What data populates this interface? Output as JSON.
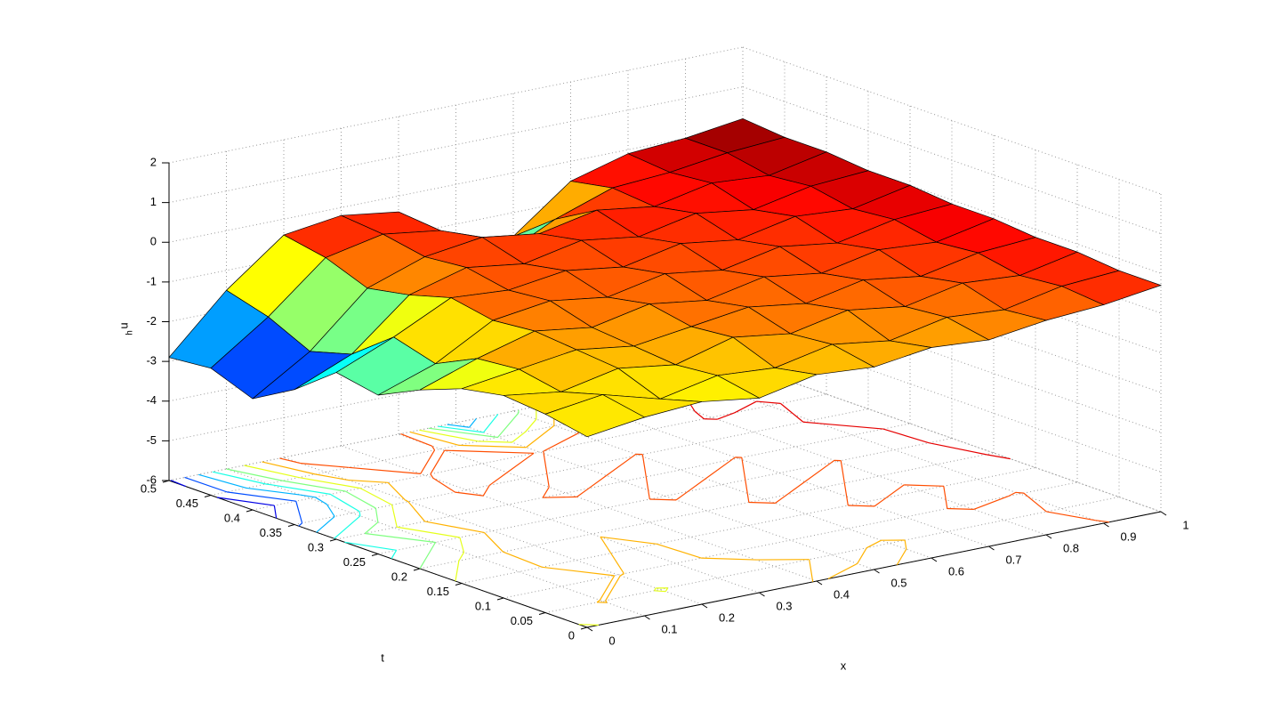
{
  "chart_data": {
    "type": "surface",
    "xlabel": "x",
    "ylabel": "t",
    "zlabel": "u",
    "zlabel_subscript": "h",
    "x": [
      0,
      0.1,
      0.2,
      0.3,
      0.4,
      0.5,
      0.6,
      0.7,
      0.8,
      0.9,
      1
    ],
    "t": [
      0,
      0.05,
      0.1,
      0.15,
      0.2,
      0.25,
      0.3,
      0.35,
      0.4,
      0.45,
      0.5
    ],
    "z": [
      [
        -1.2,
        -1.0,
        -0.9,
        -1.1,
        -0.8,
        -0.9,
        -0.7,
        -0.8,
        -0.6,
        -0.5,
        -0.3
      ],
      [
        -1.0,
        -0.8,
        -1.2,
        -0.9,
        -1.0,
        -0.7,
        -0.9,
        -0.6,
        -0.7,
        -0.4,
        -0.3
      ],
      [
        -0.9,
        -1.1,
        -0.8,
        -1.0,
        -0.6,
        -0.8,
        -0.5,
        -0.7,
        -0.4,
        -0.5,
        -0.2
      ],
      [
        -1.1,
        -0.9,
        -0.7,
        -0.9,
        -0.7,
        -0.5,
        -0.7,
        -0.4,
        -0.6,
        -0.3,
        -0.2
      ],
      [
        -1.5,
        -1.0,
        -0.6,
        -0.8,
        -0.5,
        -0.7,
        -0.4,
        -0.6,
        -0.3,
        -0.4,
        -0.1
      ],
      [
        -2.0,
        -1.5,
        -0.7,
        -0.5,
        -0.7,
        -0.4,
        -0.6,
        -0.3,
        -0.5,
        -0.2,
        -0.1
      ],
      [
        -1.8,
        -1.2,
        -0.5,
        -0.6,
        -0.4,
        -0.6,
        -0.3,
        -0.5,
        -0.2,
        -0.3,
        0.0
      ],
      [
        -2.6,
        -2.0,
        -0.8,
        -0.4,
        -0.6,
        -0.3,
        -0.5,
        -0.2,
        -0.4,
        -0.1,
        0.0
      ],
      [
        -3.2,
        -2.3,
        -1.0,
        -0.5,
        -0.3,
        -0.5,
        -0.2,
        -0.4,
        -0.1,
        -0.2,
        0.1
      ],
      [
        -2.8,
        -1.8,
        -0.6,
        -0.3,
        -0.5,
        -1.5,
        -0.8,
        -0.3,
        -0.2,
        0.0,
        0.1
      ],
      [
        -2.9,
        -1.5,
        -0.4,
        -0.2,
        -0.4,
        -2.5,
        -1.6,
        -0.5,
        -0.1,
        0.0,
        0.2
      ]
    ],
    "xlim": [
      0,
      1
    ],
    "xticks": [
      0,
      0.1,
      0.2,
      0.3,
      0.4,
      0.5,
      0.6,
      0.7,
      0.8,
      0.9,
      1
    ],
    "ylim": [
      0,
      0.5
    ],
    "yticks": [
      0,
      0.05,
      0.1,
      0.15,
      0.2,
      0.25,
      0.3,
      0.35,
      0.4,
      0.45,
      0.5
    ],
    "zlim": [
      -6,
      2
    ],
    "zticks": [
      -6,
      -5,
      -4,
      -3,
      -2,
      -1,
      0,
      1,
      2
    ],
    "grid": true,
    "colormap": "jet",
    "edge_color": "#000000",
    "contour": true
  }
}
